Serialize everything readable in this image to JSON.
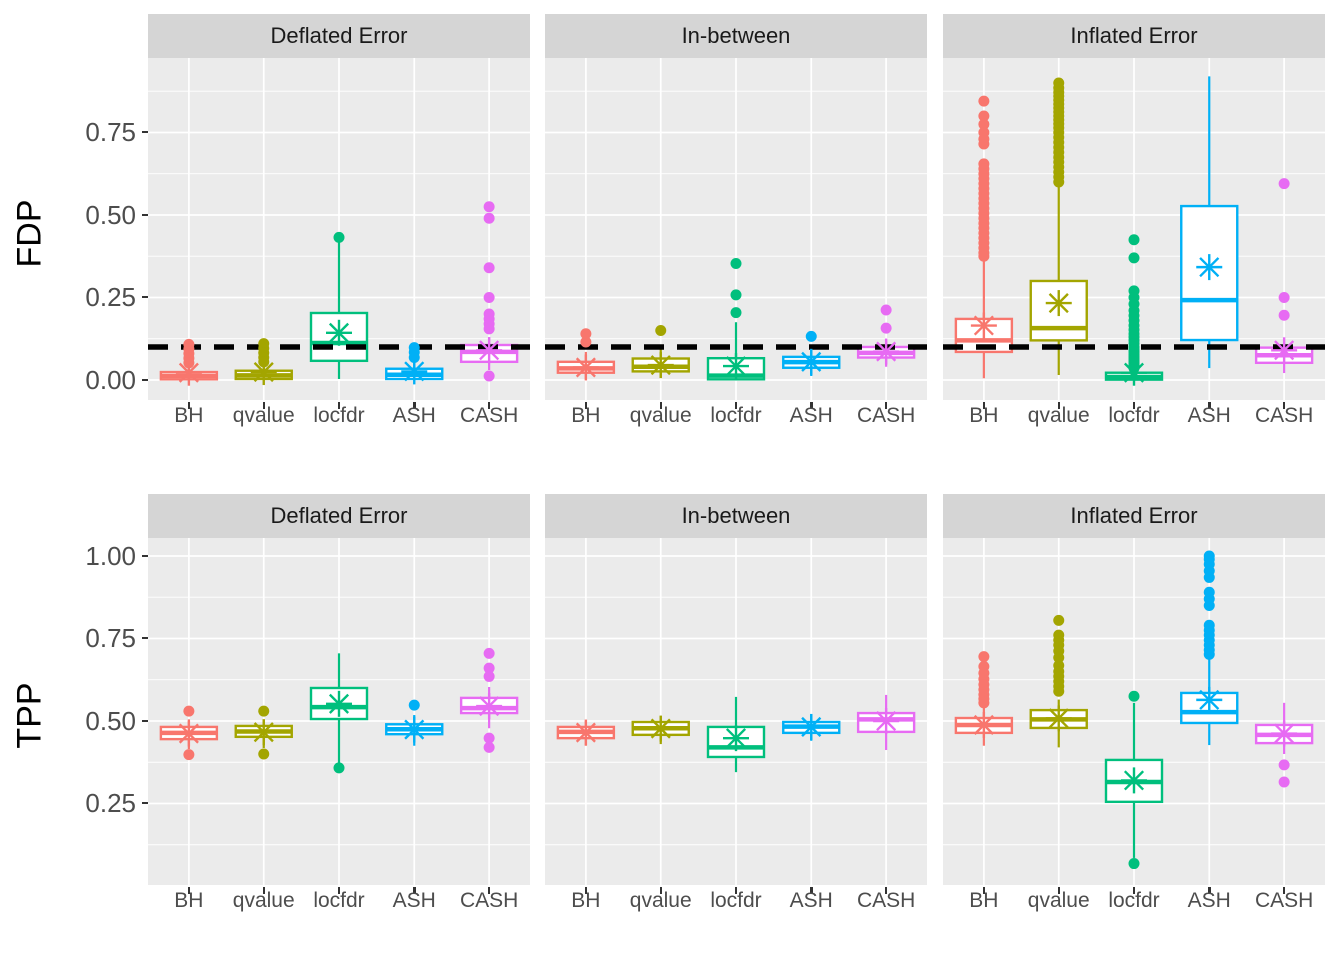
{
  "figure": {
    "kind": "faceted boxplot grid (ggplot2 style)",
    "col_facets": [
      "Deflated Error",
      "In-between",
      "Inflated Error"
    ],
    "methods": [
      "BH",
      "qvalue",
      "locfdr",
      "ASH",
      "CASH"
    ],
    "method_colors": {
      "BH": "#F8766D",
      "qvalue": "#A3A500",
      "locfdr": "#00BF7D",
      "ASH": "#00B0F6",
      "CASH": "#E76BF3"
    },
    "panel_bg": "#EBEBEB",
    "strip_bg": "#D5D5D5",
    "grid_color": "#FFFFFF",
    "tick_text_color": "#4D4D4D",
    "ref_line": {
      "value": 0.1,
      "applies_to_row": "FDP",
      "color": "#000000",
      "style": "dashed"
    },
    "rows": [
      {
        "axis_label": "FDP",
        "ylim": [
          -0.0607,
          0.9757
        ],
        "major_ticks": [
          {
            "v": 0.0,
            "label": "0.00"
          },
          {
            "v": 0.25,
            "label": "0.25"
          },
          {
            "v": 0.5,
            "label": "0.50"
          },
          {
            "v": 0.75,
            "label": "0.75"
          }
        ],
        "minor_ticks": [
          0.125,
          0.375,
          0.625,
          0.875
        ],
        "ref_line": 0.1
      },
      {
        "axis_label": "TPP",
        "ylim": [
          0.003,
          1.0545
        ],
        "major_ticks": [
          {
            "v": 0.25,
            "label": "0.25"
          },
          {
            "v": 0.5,
            "label": "0.50"
          },
          {
            "v": 0.75,
            "label": "0.75"
          },
          {
            "v": 1.0,
            "label": "1.00"
          }
        ],
        "minor_ticks": [
          0.125,
          0.375,
          0.625,
          0.875
        ],
        "ref_line": null
      }
    ]
  },
  "chart_data": [
    {
      "type": "boxplot",
      "row_facet": "FDP",
      "col_facet": "Deflated Error",
      "categories": [
        "BH",
        "qvalue",
        "locfdr",
        "ASH",
        "CASH"
      ],
      "series": [
        {
          "name": "BH",
          "whisker_low": 0.0,
          "q1": 0.002,
          "median": 0.012,
          "q3": 0.024,
          "whisker_high": 0.042,
          "mean": 0.022,
          "outliers": [
            0.108,
            0.094,
            0.08,
            0.066,
            0.052
          ]
        },
        {
          "name": "qvalue",
          "whisker_low": 0.0,
          "q1": 0.003,
          "median": 0.014,
          "q3": 0.028,
          "whisker_high": 0.048,
          "mean": 0.024,
          "outliers": [
            0.11,
            0.096,
            0.082,
            0.068,
            0.055
          ]
        },
        {
          "name": "locfdr",
          "whisker_low": 0.003,
          "q1": 0.058,
          "median": 0.112,
          "q3": 0.203,
          "whisker_high": 0.418,
          "mean": 0.143,
          "outliers": [
            0.432
          ]
        },
        {
          "name": "ASH",
          "whisker_low": 0.0,
          "q1": 0.003,
          "median": 0.016,
          "q3": 0.034,
          "whisker_high": 0.052,
          "mean": 0.026,
          "outliers": [
            0.098,
            0.084,
            0.068
          ]
        },
        {
          "name": "CASH",
          "whisker_low": 0.03,
          "q1": 0.055,
          "median": 0.085,
          "q3": 0.106,
          "whisker_high": 0.13,
          "mean": 0.09,
          "outliers": [
            0.525,
            0.49,
            0.34,
            0.25,
            0.2,
            0.185,
            0.17,
            0.155,
            0.012
          ]
        }
      ]
    },
    {
      "type": "boxplot",
      "row_facet": "FDP",
      "col_facet": "In-between",
      "categories": [
        "BH",
        "qvalue",
        "locfdr",
        "ASH",
        "CASH"
      ],
      "series": [
        {
          "name": "BH",
          "whisker_low": 0.002,
          "q1": 0.022,
          "median": 0.035,
          "q3": 0.055,
          "whisker_high": 0.085,
          "mean": 0.038,
          "outliers": [
            0.14,
            0.115
          ]
        },
        {
          "name": "qvalue",
          "whisker_low": 0.006,
          "q1": 0.026,
          "median": 0.04,
          "q3": 0.065,
          "whisker_high": 0.095,
          "mean": 0.045,
          "outliers": [
            0.15
          ]
        },
        {
          "name": "locfdr",
          "whisker_low": 0.0,
          "q1": 0.002,
          "median": 0.013,
          "q3": 0.066,
          "whisker_high": 0.175,
          "mean": 0.042,
          "outliers": [
            0.353,
            0.258,
            0.204
          ]
        },
        {
          "name": "ASH",
          "whisker_low": 0.012,
          "q1": 0.037,
          "median": 0.054,
          "q3": 0.07,
          "whisker_high": 0.1,
          "mean": 0.055,
          "outliers": [
            0.132
          ]
        },
        {
          "name": "CASH",
          "whisker_low": 0.04,
          "q1": 0.068,
          "median": 0.082,
          "q3": 0.1,
          "whisker_high": 0.12,
          "mean": 0.086,
          "outliers": [
            0.212,
            0.157
          ]
        }
      ]
    },
    {
      "type": "boxplot",
      "row_facet": "FDP",
      "col_facet": "Inflated Error",
      "categories": [
        "BH",
        "qvalue",
        "locfdr",
        "ASH",
        "CASH"
      ],
      "series": [
        {
          "name": "BH",
          "whisker_low": 0.005,
          "q1": 0.085,
          "median": 0.12,
          "q3": 0.185,
          "whisker_high": 0.37,
          "mean": 0.165,
          "outliers": [
            0.845,
            0.8,
            0.775,
            0.75,
            0.73,
            0.715,
            0.655,
            0.64,
            0.625,
            0.61,
            0.595,
            0.58,
            0.565,
            0.55,
            0.535,
            0.52,
            0.505,
            0.49,
            0.475,
            0.46,
            0.445,
            0.43,
            0.415,
            0.4,
            0.385,
            0.375
          ]
        },
        {
          "name": "qvalue",
          "whisker_low": 0.015,
          "q1": 0.12,
          "median": 0.157,
          "q3": 0.3,
          "whisker_high": 0.595,
          "mean": 0.233,
          "outliers": [
            0.9,
            0.885,
            0.872,
            0.86,
            0.848,
            0.836,
            0.824,
            0.812,
            0.8,
            0.788,
            0.776,
            0.764,
            0.75,
            0.735,
            0.72,
            0.705,
            0.69,
            0.675,
            0.66,
            0.645,
            0.63,
            0.615,
            0.6
          ]
        },
        {
          "name": "locfdr",
          "whisker_low": 0.0,
          "q1": 0.001,
          "median": 0.009,
          "q3": 0.022,
          "whisker_high": 0.032,
          "mean": 0.022,
          "outliers": [
            0.425,
            0.37,
            0.27,
            0.25,
            0.23,
            0.21,
            0.195,
            0.18,
            0.165,
            0.152,
            0.14,
            0.13,
            0.12,
            0.11,
            0.1,
            0.092,
            0.085,
            0.078,
            0.072,
            0.066,
            0.06,
            0.055,
            0.05,
            0.045,
            0.04,
            0.036
          ]
        },
        {
          "name": "ASH",
          "whisker_low": 0.036,
          "q1": 0.121,
          "median": 0.242,
          "q3": 0.527,
          "whisker_high": 0.92,
          "mean": 0.342,
          "outliers": []
        },
        {
          "name": "CASH",
          "whisker_low": 0.021,
          "q1": 0.052,
          "median": 0.075,
          "q3": 0.098,
          "whisker_high": 0.113,
          "mean": 0.09,
          "outliers": [
            0.595,
            0.25,
            0.196
          ]
        }
      ]
    },
    {
      "type": "boxplot",
      "row_facet": "TPP",
      "col_facet": "Deflated Error",
      "categories": [
        "BH",
        "qvalue",
        "locfdr",
        "ASH",
        "CASH"
      ],
      "series": [
        {
          "name": "BH",
          "whisker_low": 0.415,
          "q1": 0.445,
          "median": 0.464,
          "q3": 0.482,
          "whisker_high": 0.505,
          "mean": 0.462,
          "outliers": [
            0.53,
            0.398
          ]
        },
        {
          "name": "qvalue",
          "whisker_low": 0.418,
          "q1": 0.452,
          "median": 0.468,
          "q3": 0.485,
          "whisker_high": 0.505,
          "mean": 0.466,
          "outliers": [
            0.53,
            0.4
          ]
        },
        {
          "name": "locfdr",
          "whisker_low": 0.37,
          "q1": 0.506,
          "median": 0.542,
          "q3": 0.6,
          "whisker_high": 0.705,
          "mean": 0.552,
          "outliers": [
            0.358
          ]
        },
        {
          "name": "ASH",
          "whisker_low": 0.425,
          "q1": 0.46,
          "median": 0.475,
          "q3": 0.49,
          "whisker_high": 0.518,
          "mean": 0.474,
          "outliers": [
            0.548
          ]
        },
        {
          "name": "CASH",
          "whisker_low": 0.478,
          "q1": 0.524,
          "median": 0.539,
          "q3": 0.57,
          "whisker_high": 0.603,
          "mean": 0.545,
          "outliers": [
            0.705,
            0.66,
            0.635,
            0.448,
            0.42
          ]
        }
      ]
    },
    {
      "type": "boxplot",
      "row_facet": "TPP",
      "col_facet": "In-between",
      "categories": [
        "BH",
        "qvalue",
        "locfdr",
        "ASH",
        "CASH"
      ],
      "series": [
        {
          "name": "BH",
          "whisker_low": 0.425,
          "q1": 0.448,
          "median": 0.467,
          "q3": 0.482,
          "whisker_high": 0.5,
          "mean": 0.465,
          "outliers": []
        },
        {
          "name": "qvalue",
          "whisker_low": 0.43,
          "q1": 0.458,
          "median": 0.478,
          "q3": 0.497,
          "whisker_high": 0.515,
          "mean": 0.477,
          "outliers": []
        },
        {
          "name": "locfdr",
          "whisker_low": 0.345,
          "q1": 0.391,
          "median": 0.42,
          "q3": 0.482,
          "whisker_high": 0.573,
          "mean": 0.448,
          "outliers": []
        },
        {
          "name": "ASH",
          "whisker_low": 0.44,
          "q1": 0.464,
          "median": 0.483,
          "q3": 0.497,
          "whisker_high": 0.52,
          "mean": 0.482,
          "outliers": []
        },
        {
          "name": "CASH",
          "whisker_low": 0.412,
          "q1": 0.467,
          "median": 0.505,
          "q3": 0.524,
          "whisker_high": 0.579,
          "mean": 0.5,
          "outliers": []
        }
      ]
    },
    {
      "type": "boxplot",
      "row_facet": "TPP",
      "col_facet": "Inflated Error",
      "categories": [
        "BH",
        "qvalue",
        "locfdr",
        "ASH",
        "CASH"
      ],
      "series": [
        {
          "name": "BH",
          "whisker_low": 0.425,
          "q1": 0.464,
          "median": 0.488,
          "q3": 0.509,
          "whisker_high": 0.545,
          "mean": 0.488,
          "outliers": [
            0.695,
            0.665,
            0.645,
            0.627,
            0.61,
            0.595,
            0.58,
            0.567,
            0.555
          ]
        },
        {
          "name": "qvalue",
          "whisker_low": 0.42,
          "q1": 0.479,
          "median": 0.505,
          "q3": 0.533,
          "whisker_high": 0.565,
          "mean": 0.508,
          "outliers": [
            0.805,
            0.76,
            0.745,
            0.73,
            0.712,
            0.692,
            0.668,
            0.65,
            0.635,
            0.62,
            0.605,
            0.59
          ]
        },
        {
          "name": "locfdr",
          "whisker_low": 0.085,
          "q1": 0.255,
          "median": 0.315,
          "q3": 0.382,
          "whisker_high": 0.555,
          "mean": 0.32,
          "outliers": [
            0.575,
            0.068
          ]
        },
        {
          "name": "ASH",
          "whisker_low": 0.427,
          "q1": 0.494,
          "median": 0.527,
          "q3": 0.585,
          "whisker_high": 0.695,
          "mean": 0.564,
          "outliers": [
            1.0,
            0.99,
            0.975,
            0.955,
            0.935,
            0.89,
            0.87,
            0.85,
            0.79,
            0.775,
            0.76,
            0.745,
            0.73,
            0.715,
            0.702
          ]
        },
        {
          "name": "CASH",
          "whisker_low": 0.4,
          "q1": 0.433,
          "median": 0.458,
          "q3": 0.488,
          "whisker_high": 0.555,
          "mean": 0.462,
          "outliers": [
            0.367,
            0.315
          ]
        }
      ]
    }
  ]
}
